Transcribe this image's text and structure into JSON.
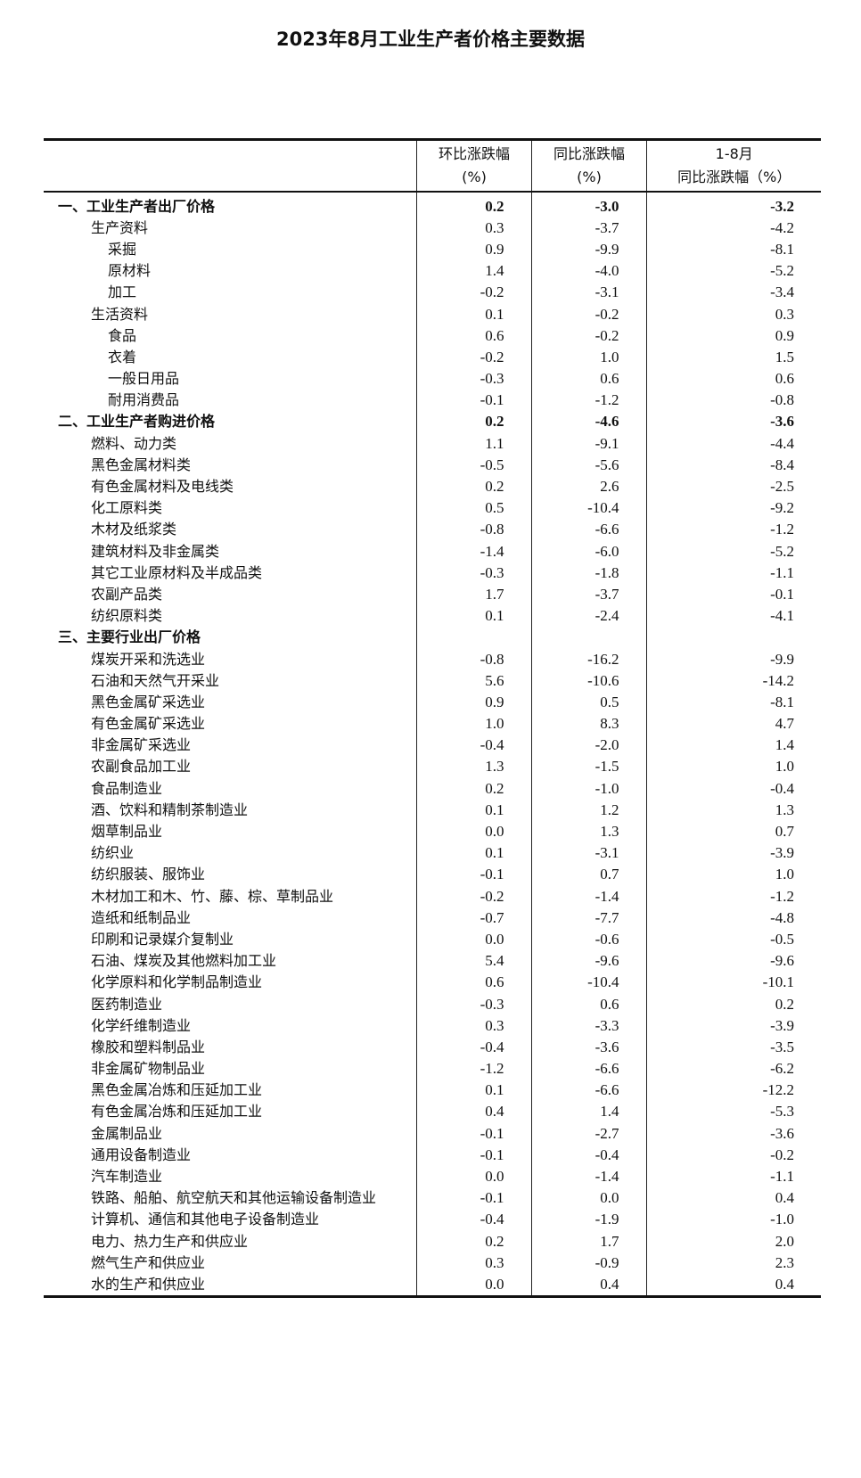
{
  "title": "2023年8月工业生产者价格主要数据",
  "headers": {
    "mom_line1": "环比涨跌幅",
    "mom_line2": "(%)",
    "yoy_line1": "同比涨跌幅",
    "yoy_line2": "(%)",
    "ytd_line1": "1-8月",
    "ytd_line2": "同比涨跌幅（%）"
  },
  "rows": [
    {
      "name": "一、工业生产者出厂价格",
      "level": 0,
      "mom": "0.2",
      "yoy": "-3.0",
      "ytd": "-3.2"
    },
    {
      "name": "生产资料",
      "level": 1,
      "mom": "0.3",
      "yoy": "-3.7",
      "ytd": "-4.2"
    },
    {
      "name": "采掘",
      "level": 2,
      "mom": "0.9",
      "yoy": "-9.9",
      "ytd": "-8.1"
    },
    {
      "name": "原材料",
      "level": 2,
      "mom": "1.4",
      "yoy": "-4.0",
      "ytd": "-5.2"
    },
    {
      "name": "加工",
      "level": 2,
      "mom": "-0.2",
      "yoy": "-3.1",
      "ytd": "-3.4"
    },
    {
      "name": "生活资料",
      "level": 1,
      "mom": "0.1",
      "yoy": "-0.2",
      "ytd": "0.3"
    },
    {
      "name": "食品",
      "level": 2,
      "mom": "0.6",
      "yoy": "-0.2",
      "ytd": "0.9"
    },
    {
      "name": "衣着",
      "level": 2,
      "mom": "-0.2",
      "yoy": "1.0",
      "ytd": "1.5"
    },
    {
      "name": "一般日用品",
      "level": 2,
      "mom": "-0.3",
      "yoy": "0.6",
      "ytd": "0.6"
    },
    {
      "name": "耐用消费品",
      "level": 2,
      "mom": "-0.1",
      "yoy": "-1.2",
      "ytd": "-0.8"
    },
    {
      "name": "二、工业生产者购进价格",
      "level": 0,
      "mom": "0.2",
      "yoy": "-4.6",
      "ytd": "-3.6"
    },
    {
      "name": "燃料、动力类",
      "level": 1,
      "mom": "1.1",
      "yoy": "-9.1",
      "ytd": "-4.4"
    },
    {
      "name": "黑色金属材料类",
      "level": 1,
      "mom": "-0.5",
      "yoy": "-5.6",
      "ytd": "-8.4"
    },
    {
      "name": "有色金属材料及电线类",
      "level": 1,
      "mom": "0.2",
      "yoy": "2.6",
      "ytd": "-2.5"
    },
    {
      "name": "化工原料类",
      "level": 1,
      "mom": "0.5",
      "yoy": "-10.4",
      "ytd": "-9.2"
    },
    {
      "name": "木材及纸浆类",
      "level": 1,
      "mom": "-0.8",
      "yoy": "-6.6",
      "ytd": "-1.2"
    },
    {
      "name": "建筑材料及非金属类",
      "level": 1,
      "mom": "-1.4",
      "yoy": "-6.0",
      "ytd": "-5.2"
    },
    {
      "name": "其它工业原材料及半成品类",
      "level": 1,
      "mom": "-0.3",
      "yoy": "-1.8",
      "ytd": "-1.1"
    },
    {
      "name": "农副产品类",
      "level": 1,
      "mom": "1.7",
      "yoy": "-3.7",
      "ytd": "-0.1"
    },
    {
      "name": "纺织原料类",
      "level": 1,
      "mom": "0.1",
      "yoy": "-2.4",
      "ytd": "-4.1"
    },
    {
      "name": "三、主要行业出厂价格",
      "level": 0,
      "mom": "",
      "yoy": "",
      "ytd": ""
    },
    {
      "name": "煤炭开采和洗选业",
      "level": 1,
      "mom": "-0.8",
      "yoy": "-16.2",
      "ytd": "-9.9"
    },
    {
      "name": "石油和天然气开采业",
      "level": 1,
      "mom": "5.6",
      "yoy": "-10.6",
      "ytd": "-14.2"
    },
    {
      "name": "黑色金属矿采选业",
      "level": 1,
      "mom": "0.9",
      "yoy": "0.5",
      "ytd": "-8.1"
    },
    {
      "name": "有色金属矿采选业",
      "level": 1,
      "mom": "1.0",
      "yoy": "8.3",
      "ytd": "4.7"
    },
    {
      "name": "非金属矿采选业",
      "level": 1,
      "mom": "-0.4",
      "yoy": "-2.0",
      "ytd": "1.4"
    },
    {
      "name": "农副食品加工业",
      "level": 1,
      "mom": "1.3",
      "yoy": "-1.5",
      "ytd": "1.0"
    },
    {
      "name": "食品制造业",
      "level": 1,
      "mom": "0.2",
      "yoy": "-1.0",
      "ytd": "-0.4"
    },
    {
      "name": "酒、饮料和精制茶制造业",
      "level": 1,
      "mom": "0.1",
      "yoy": "1.2",
      "ytd": "1.3"
    },
    {
      "name": "烟草制品业",
      "level": 1,
      "mom": "0.0",
      "yoy": "1.3",
      "ytd": "0.7"
    },
    {
      "name": "纺织业",
      "level": 1,
      "mom": "0.1",
      "yoy": "-3.1",
      "ytd": "-3.9"
    },
    {
      "name": "纺织服装、服饰业",
      "level": 1,
      "mom": "-0.1",
      "yoy": "0.7",
      "ytd": "1.0"
    },
    {
      "name": "木材加工和木、竹、藤、棕、草制品业",
      "level": 1,
      "mom": "-0.2",
      "yoy": "-1.4",
      "ytd": "-1.2"
    },
    {
      "name": "造纸和纸制品业",
      "level": 1,
      "mom": "-0.7",
      "yoy": "-7.7",
      "ytd": "-4.8"
    },
    {
      "name": "印刷和记录媒介复制业",
      "level": 1,
      "mom": "0.0",
      "yoy": "-0.6",
      "ytd": "-0.5"
    },
    {
      "name": "石油、煤炭及其他燃料加工业",
      "level": 1,
      "mom": "5.4",
      "yoy": "-9.6",
      "ytd": "-9.6"
    },
    {
      "name": "化学原料和化学制品制造业",
      "level": 1,
      "mom": "0.6",
      "yoy": "-10.4",
      "ytd": "-10.1"
    },
    {
      "name": "医药制造业",
      "level": 1,
      "mom": "-0.3",
      "yoy": "0.6",
      "ytd": "0.2"
    },
    {
      "name": "化学纤维制造业",
      "level": 1,
      "mom": "0.3",
      "yoy": "-3.3",
      "ytd": "-3.9"
    },
    {
      "name": "橡胶和塑料制品业",
      "level": 1,
      "mom": "-0.4",
      "yoy": "-3.6",
      "ytd": "-3.5"
    },
    {
      "name": "非金属矿物制品业",
      "level": 1,
      "mom": "-1.2",
      "yoy": "-6.6",
      "ytd": "-6.2"
    },
    {
      "name": "黑色金属冶炼和压延加工业",
      "level": 1,
      "mom": "0.1",
      "yoy": "-6.6",
      "ytd": "-12.2"
    },
    {
      "name": "有色金属冶炼和压延加工业",
      "level": 1,
      "mom": "0.4",
      "yoy": "1.4",
      "ytd": "-5.3"
    },
    {
      "name": "金属制品业",
      "level": 1,
      "mom": "-0.1",
      "yoy": "-2.7",
      "ytd": "-3.6"
    },
    {
      "name": "通用设备制造业",
      "level": 1,
      "mom": "-0.1",
      "yoy": "-0.4",
      "ytd": "-0.2"
    },
    {
      "name": "汽车制造业",
      "level": 1,
      "mom": "0.0",
      "yoy": "-1.4",
      "ytd": "-1.1"
    },
    {
      "name": "铁路、船舶、航空航天和其他运输设备制造业",
      "level": 1,
      "mom": "-0.1",
      "yoy": "0.0",
      "ytd": "0.4"
    },
    {
      "name": "计算机、通信和其他电子设备制造业",
      "level": 1,
      "mom": "-0.4",
      "yoy": "-1.9",
      "ytd": "-1.0"
    },
    {
      "name": "电力、热力生产和供应业",
      "level": 1,
      "mom": "0.2",
      "yoy": "1.7",
      "ytd": "2.0"
    },
    {
      "name": "燃气生产和供应业",
      "level": 1,
      "mom": "0.3",
      "yoy": "-0.9",
      "ytd": "2.3"
    },
    {
      "name": "水的生产和供应业",
      "level": 1,
      "mom": "0.0",
      "yoy": "0.4",
      "ytd": "0.4"
    }
  ]
}
